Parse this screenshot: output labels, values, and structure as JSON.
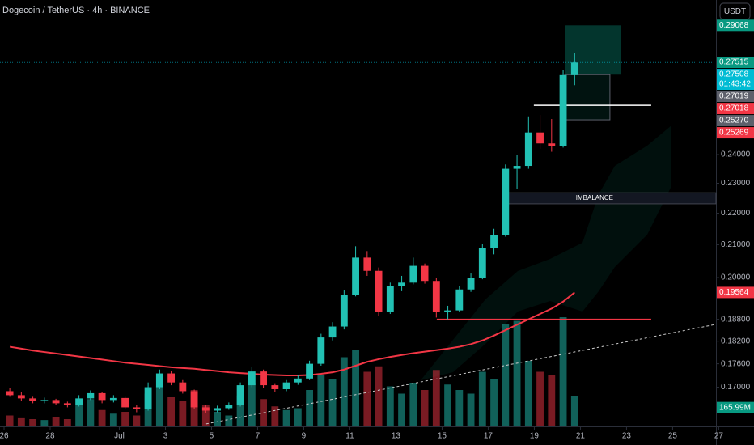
{
  "chart_data": {
    "type": "candlestick",
    "title": "Dogecoin / TetherUS · 4h · BINANCE",
    "currency": "USDT",
    "log_scale": true,
    "grid": false,
    "up_color": "#22c1b4",
    "down_color": "#f23645",
    "xlim": [
      -0.175,
      30.88
    ],
    "xticks": [
      {
        "value": 0,
        "label": "26"
      },
      {
        "value": 2,
        "label": "28"
      },
      {
        "value": 5,
        "label": "Jul"
      },
      {
        "value": 7,
        "label": "3"
      },
      {
        "value": 9,
        "label": "5"
      },
      {
        "value": 11,
        "label": "7"
      },
      {
        "value": 13,
        "label": "9"
      },
      {
        "value": 15,
        "label": "11"
      },
      {
        "value": 17,
        "label": "13"
      },
      {
        "value": 19,
        "label": "15"
      },
      {
        "value": 21,
        "label": "17"
      },
      {
        "value": 23,
        "label": "19"
      },
      {
        "value": 25,
        "label": "21"
      },
      {
        "value": 27,
        "label": "23"
      },
      {
        "value": 29,
        "label": "25"
      },
      {
        "value": 31,
        "label": "27"
      }
    ],
    "ylim": [
      0.1604,
      0.3018
    ],
    "yticks": [
      {
        "value": 0.24,
        "label": "0.24000"
      },
      {
        "value": 0.23,
        "label": "0.23000"
      },
      {
        "value": 0.22,
        "label": "0.22000"
      },
      {
        "value": 0.21,
        "label": "0.21000"
      },
      {
        "value": 0.2,
        "label": "0.20000"
      },
      {
        "value": 0.188,
        "label": "0.18800"
      },
      {
        "value": 0.182,
        "label": "0.18200"
      },
      {
        "value": 0.176,
        "label": "0.17600"
      },
      {
        "value": 0.17,
        "label": "0.17000"
      }
    ],
    "x": [
      0.25,
      0.75,
      1.25,
      1.75,
      2.25,
      2.75,
      3.25,
      3.75,
      4.25,
      4.75,
      5.25,
      5.75,
      6.25,
      6.75,
      7.25,
      7.75,
      8.25,
      8.75,
      9.25,
      9.75,
      10.25,
      10.75,
      11.25,
      11.75,
      12.25,
      12.75,
      13.25,
      13.75,
      14.25,
      14.75,
      15.25,
      15.75,
      16.25,
      16.75,
      17.25,
      17.75,
      18.25,
      18.75,
      19.25,
      19.75,
      20.25,
      20.75,
      21.25,
      21.75,
      22.25,
      22.75,
      23.25,
      23.75,
      24.25,
      24.75
    ],
    "open": [
      0.169,
      0.168,
      0.1672,
      0.1665,
      0.1668,
      0.166,
      0.1655,
      0.1672,
      0.1685,
      0.1668,
      0.1673,
      0.165,
      0.1645,
      0.17,
      0.1735,
      0.1712,
      0.169,
      0.165,
      0.1642,
      0.1648,
      0.1655,
      0.1705,
      0.174,
      0.1705,
      0.1695,
      0.1712,
      0.1722,
      0.176,
      0.183,
      0.186,
      0.195,
      0.206,
      0.202,
      0.19,
      0.1975,
      0.1985,
      0.2035,
      0.199,
      0.19,
      0.1905,
      0.1965,
      0.2,
      0.209,
      0.213,
      0.235,
      0.236,
      0.248,
      0.244,
      0.243,
      0.27
    ],
    "high": [
      0.1698,
      0.1688,
      0.1676,
      0.1674,
      0.1671,
      0.1664,
      0.168,
      0.1692,
      0.1688,
      0.168,
      0.1676,
      0.1655,
      0.1712,
      0.1745,
      0.1742,
      0.1718,
      0.1694,
      0.1656,
      0.1654,
      0.1662,
      0.1712,
      0.1752,
      0.1745,
      0.171,
      0.1718,
      0.173,
      0.1768,
      0.184,
      0.1872,
      0.1962,
      0.2095,
      0.208,
      0.203,
      0.1985,
      0.2005,
      0.206,
      0.2042,
      0.1998,
      0.1918,
      0.1975,
      0.2012,
      0.2102,
      0.215,
      0.2365,
      0.24,
      0.254,
      0.2545,
      0.253,
      0.272,
      0.279
    ],
    "low": [
      0.1676,
      0.1666,
      0.166,
      0.166,
      0.1655,
      0.165,
      0.1652,
      0.1668,
      0.166,
      0.1662,
      0.1645,
      0.1638,
      0.1642,
      0.1695,
      0.1705,
      0.1684,
      0.1645,
      0.1636,
      0.1638,
      0.1644,
      0.1652,
      0.17,
      0.1698,
      0.1688,
      0.169,
      0.1706,
      0.1718,
      0.1755,
      0.1822,
      0.1852,
      0.1945,
      0.2005,
      0.189,
      0.1895,
      0.196,
      0.198,
      0.1982,
      0.1885,
      0.188,
      0.19,
      0.1958,
      0.1995,
      0.207,
      0.2125,
      0.228,
      0.235,
      0.242,
      0.241,
      0.2425,
      0.266
    ],
    "close": [
      0.168,
      0.1672,
      0.1665,
      0.1668,
      0.166,
      0.1655,
      0.1672,
      0.1685,
      0.1668,
      0.1673,
      0.165,
      0.1645,
      0.17,
      0.1735,
      0.1712,
      0.169,
      0.165,
      0.1642,
      0.1648,
      0.1655,
      0.1705,
      0.174,
      0.1705,
      0.1695,
      0.1712,
      0.1722,
      0.176,
      0.183,
      0.186,
      0.195,
      0.206,
      0.202,
      0.19,
      0.1975,
      0.1985,
      0.2035,
      0.199,
      0.19,
      0.1905,
      0.1965,
      0.2,
      0.209,
      0.213,
      0.235,
      0.236,
      0.248,
      0.244,
      0.243,
      0.27,
      0.27508
    ],
    "volume": {
      "values": [
        60,
        45,
        40,
        35,
        50,
        40,
        120,
        150,
        90,
        70,
        80,
        60,
        180,
        220,
        160,
        140,
        200,
        120,
        80,
        60,
        170,
        240,
        150,
        110,
        90,
        100,
        200,
        280,
        260,
        380,
        420,
        300,
        330,
        220,
        180,
        240,
        200,
        310,
        230,
        200,
        180,
        300,
        260,
        560,
        580,
        360,
        300,
        280,
        600,
        165.99
      ],
      "y2lim": [
        0,
        800
      ],
      "label": "165.99M",
      "label_color": "#089981"
    },
    "ma": {
      "color": "#f23645",
      "label": "0.19564",
      "values": [
        0.1805,
        0.18,
        0.1795,
        0.1791,
        0.1787,
        0.1783,
        0.1779,
        0.1775,
        0.1771,
        0.1767,
        0.1763,
        0.176,
        0.1757,
        0.1754,
        0.1751,
        0.1749,
        0.1747,
        0.1744,
        0.1741,
        0.1738,
        0.1736,
        0.1734,
        0.1732,
        0.1731,
        0.173,
        0.173,
        0.1731,
        0.1734,
        0.1738,
        0.1745,
        0.1755,
        0.1765,
        0.1772,
        0.1778,
        0.1783,
        0.1788,
        0.1792,
        0.1796,
        0.18,
        0.1805,
        0.1812,
        0.1822,
        0.1835,
        0.185,
        0.1865,
        0.188,
        0.1895,
        0.191,
        0.193,
        0.19564
      ]
    },
    "price_labels": [
      {
        "value": 0.29068,
        "label": "0.29068",
        "color": "#089981"
      },
      {
        "value": 0.27515,
        "label": "0.27515",
        "color": "#089981"
      },
      {
        "value": 0.27508,
        "label": "0.27508",
        "color": "#00bcd4",
        "countdown": "01:43:42"
      },
      {
        "value": 0.27019,
        "label": "0.27019",
        "color": "#5d606b"
      },
      {
        "value": 0.27018,
        "label": "0.27018",
        "color": "#f23645"
      },
      {
        "value": 0.2527,
        "label": "0.25270",
        "color": "#5d606b"
      },
      {
        "value": 0.25269,
        "label": "0.25269",
        "color": "#f23645"
      }
    ],
    "position": {
      "x": [
        24.32,
        26.77
      ]
    },
    "imbalance": {
      "label": "IMBALANCE",
      "x": [
        21.75,
        30.88
      ],
      "y": [
        0.2231,
        0.2268
      ]
    },
    "levels": [
      {
        "x": [
          18.77,
          28.07
        ],
        "y": 0.188,
        "color": "#f23645"
      },
      {
        "x": [
          22.98,
          28.07
        ],
        "y": 0.2582,
        "color": "#ffffff"
      }
    ],
    "trendline": {
      "x": [
        8.77,
        30.88
      ],
      "y": [
        0.161,
        0.1866
      ],
      "color": "#cccccc"
    }
  }
}
